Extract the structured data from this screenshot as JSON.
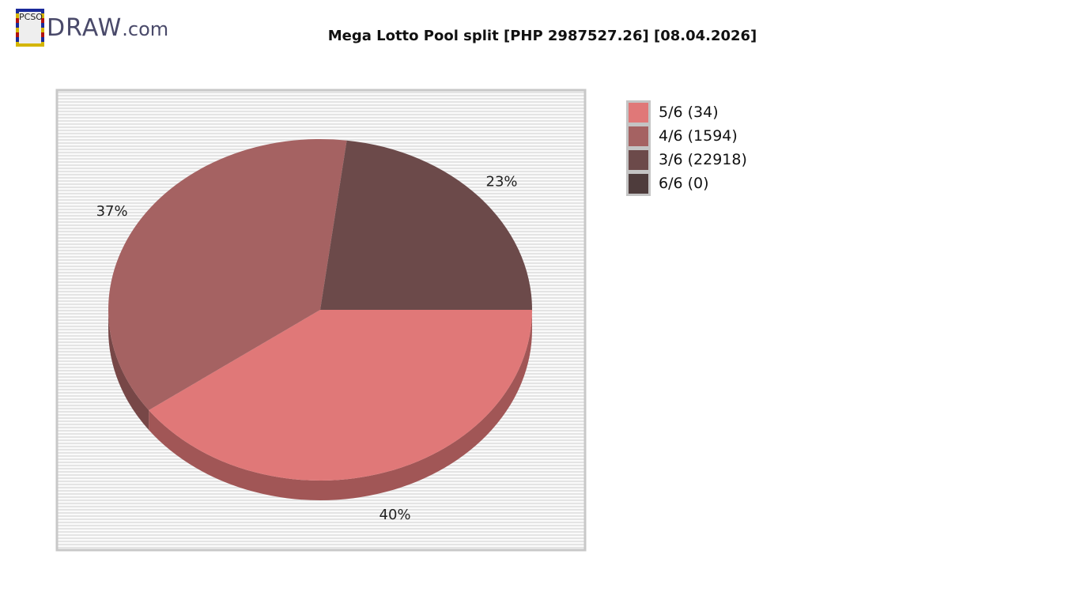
{
  "logo": {
    "badge": "PCSO",
    "brand": "DRAW",
    "suffix": ".com"
  },
  "chart_data": {
    "type": "pie",
    "title": "Mega Lotto Pool split [PHP 2987527.26] [08.04.2026]",
    "legend_position": "right",
    "three_d": true,
    "slices": [
      {
        "label": "5/6 (34)",
        "percent": 40,
        "percent_label": "40%",
        "color": "#e07878"
      },
      {
        "label": "4/6 (1594)",
        "percent": 37,
        "percent_label": "37%",
        "color": "#a56262"
      },
      {
        "label": "3/6 (22918)",
        "percent": 23,
        "percent_label": "23%",
        "color": "#6c4a4a"
      },
      {
        "label": "6/6 (0)",
        "percent": 0,
        "percent_label": "",
        "color": "#4e3c3c"
      }
    ]
  }
}
